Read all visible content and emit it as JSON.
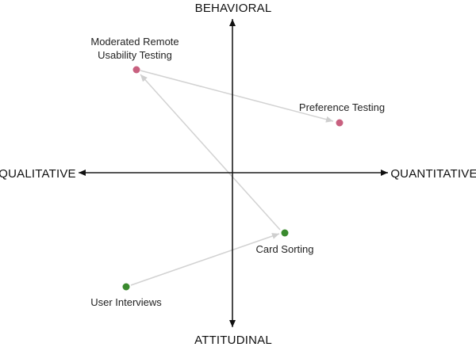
{
  "axes": {
    "top_label": "BEHAVIORAL",
    "bottom_label": "ATTITUDINAL",
    "left_label": "QUALITATIVE",
    "right_label": "QUANTITATIVE"
  },
  "points": {
    "moderated_remote": {
      "line1": "Moderated Remote",
      "line2": "Usability Testing",
      "color": "#c8607f"
    },
    "preference_testing": {
      "label": "Preference Testing",
      "color": "#c8607f"
    },
    "card_sorting": {
      "label": "Card Sorting",
      "color": "#3a8a2e"
    },
    "user_interviews": {
      "label": "User Interviews",
      "color": "#3a8a2e"
    }
  },
  "connectors": [
    {
      "from": "card_sorting",
      "to": "moderated_remote"
    },
    {
      "from": "moderated_remote",
      "to": "preference_testing"
    },
    {
      "from": "user_interviews",
      "to": "card_sorting"
    }
  ],
  "colors": {
    "axis": "#111111",
    "connector": "#d2d2d2"
  }
}
